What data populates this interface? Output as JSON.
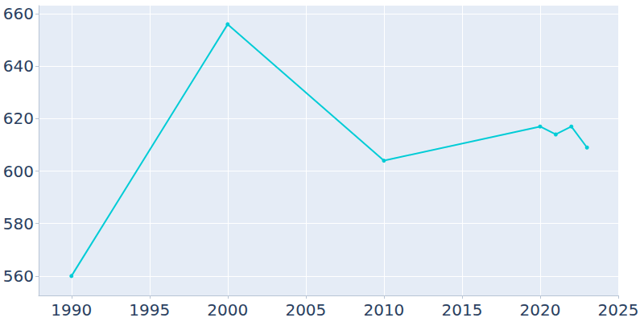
{
  "chart_data": {
    "type": "line",
    "x": [
      1990,
      2000,
      2010,
      2020,
      2021,
      2022,
      2023
    ],
    "values": [
      560,
      656,
      604,
      617,
      614,
      617,
      609
    ],
    "color": "#00ccd6",
    "marker": "circle",
    "xlim": [
      1987.9,
      2025
    ],
    "xticks": [
      1990,
      1995,
      2000,
      2005,
      2010,
      2015,
      2020,
      2025
    ],
    "ylim": [
      552.6,
      663.1
    ],
    "yticks": [
      560,
      580,
      600,
      620,
      640,
      660
    ],
    "grid": true
  }
}
